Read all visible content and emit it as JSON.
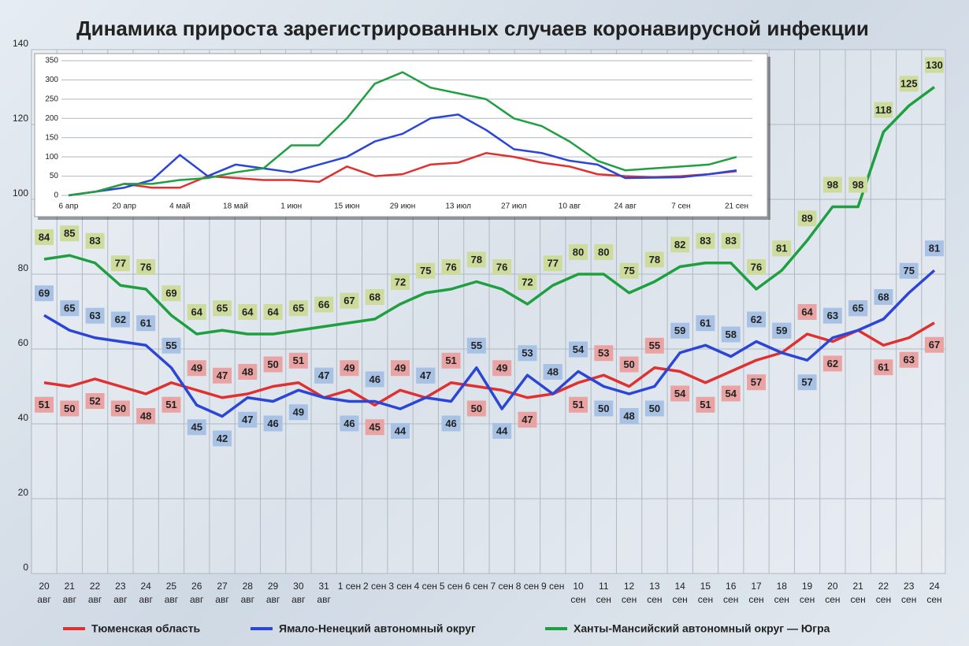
{
  "chart_data": [
    {
      "type": "line",
      "title": "Динамика прироста зарегистрированных случаев коронавирусной инфекции",
      "categories": [
        "20 авг",
        "21 авг",
        "22 авг",
        "23 авг",
        "24 авг",
        "25 авг",
        "26 авг",
        "27 авг",
        "28 авг",
        "29 авг",
        "30 авг",
        "31 авг",
        "1 сен",
        "2 сен",
        "3 сен",
        "4 сен",
        "5 сен",
        "6 сен",
        "7 сен",
        "8 сен",
        "9 сен",
        "10 сен",
        "11 сен",
        "12 сен",
        "13 сен",
        "14 сен",
        "15 сен",
        "16 сен",
        "17 сен",
        "18 сен",
        "19 сен",
        "20 сен",
        "21 сен",
        "22 сен",
        "23 сен",
        "24 сен"
      ],
      "series": [
        {
          "name": "Тюменская область",
          "color": "#e03030",
          "label_color": "#e9a3a3",
          "values": [
            51,
            50,
            52,
            50,
            48,
            51,
            49,
            47,
            48,
            50,
            51,
            47,
            49,
            45,
            49,
            47,
            51,
            50,
            49,
            47,
            48,
            51,
            53,
            50,
            55,
            54,
            51,
            54,
            57,
            59,
            64,
            62,
            65,
            61,
            63,
            67
          ]
        },
        {
          "name": "Ямало-Ненецкий автономный округ",
          "color": "#2b45d6",
          "label_color": "#a8c2e6",
          "values": [
            69,
            65,
            63,
            62,
            61,
            55,
            45,
            42,
            47,
            46,
            49,
            47,
            46,
            46,
            44,
            47,
            46,
            55,
            44,
            53,
            48,
            54,
            50,
            48,
            50,
            59,
            61,
            58,
            62,
            59,
            57,
            63,
            65,
            68,
            75,
            81
          ]
        },
        {
          "name": "Ханты-Мансийский автономный округ — Югра",
          "color": "#1fa040",
          "label_color": "#cddc9c",
          "values": [
            84,
            85,
            83,
            77,
            76,
            69,
            64,
            65,
            64,
            64,
            65,
            66,
            67,
            68,
            72,
            75,
            76,
            78,
            76,
            72,
            77,
            80,
            80,
            75,
            78,
            82,
            83,
            83,
            76,
            81,
            89,
            98,
            98,
            118,
            125,
            130
          ]
        }
      ],
      "ylim": [
        0,
        140
      ],
      "yticks": [
        0,
        20,
        40,
        60,
        80,
        100,
        120,
        140
      ],
      "grid": true,
      "legend": "bottom"
    },
    {
      "type": "line",
      "categories": [
        "6 апр",
        null,
        "20 апр",
        null,
        "4 май",
        null,
        "18 май",
        null,
        "1 июн",
        null,
        "15 июн",
        null,
        "29 июн",
        null,
        "13 июл",
        null,
        "27 июл",
        null,
        "10 авг",
        null,
        "24 авг",
        null,
        "7 сен",
        null,
        "21 сен"
      ],
      "series": [
        {
          "color": "#e03030",
          "values": [
            0,
            10,
            30,
            20,
            20,
            50,
            45,
            40,
            40,
            35,
            75,
            50,
            55,
            80,
            85,
            110,
            100,
            85,
            75,
            55,
            50,
            47,
            50,
            55,
            63
          ]
        },
        {
          "color": "#2b45d6",
          "values": [
            0,
            10,
            20,
            40,
            105,
            50,
            80,
            70,
            60,
            80,
            100,
            140,
            160,
            200,
            210,
            170,
            120,
            110,
            90,
            80,
            45,
            46,
            47,
            55,
            65
          ]
        },
        {
          "color": "#1fa040",
          "values": [
            0,
            10,
            30,
            30,
            40,
            45,
            60,
            70,
            130,
            130,
            200,
            290,
            320,
            280,
            265,
            250,
            200,
            180,
            140,
            90,
            65,
            70,
            75,
            80,
            100
          ]
        }
      ],
      "ylim": [
        0,
        350
      ],
      "yticks": [
        0,
        50,
        100,
        150,
        200,
        250,
        300,
        350
      ],
      "grid": true
    }
  ]
}
